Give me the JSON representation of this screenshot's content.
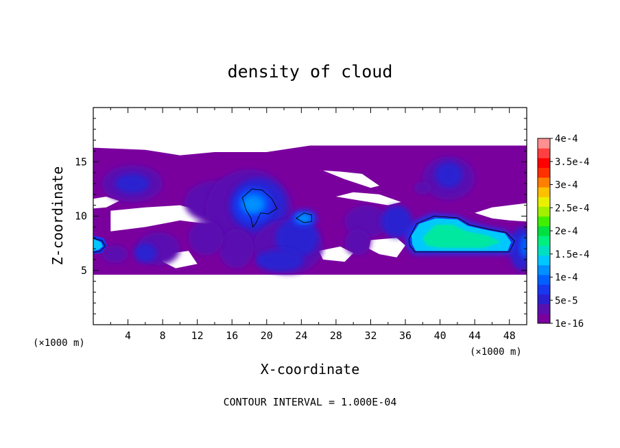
{
  "chart_data": {
    "type": "heatmap",
    "title": "density of cloud",
    "xlabel": "X-coordinate",
    "ylabel": "Z-coordinate",
    "x_unit": "(×1000 m)",
    "y_unit": "(×1000 m)",
    "xlim": [
      0,
      50
    ],
    "ylim": [
      0,
      20
    ],
    "x_ticks": [
      "4",
      "8",
      "12",
      "16",
      "20",
      "24",
      "28",
      "32",
      "36",
      "40",
      "44",
      "48"
    ],
    "y_ticks": [
      "5",
      "10",
      "15"
    ],
    "x_tick_values": [
      4,
      8,
      12,
      16,
      20,
      24,
      28,
      32,
      36,
      40,
      44,
      48
    ],
    "y_tick_values": [
      5,
      10,
      15
    ],
    "footnote": "CONTOUR INTERVAL = 1.000E-04",
    "colorbar": {
      "labels": [
        "4e-4",
        "3.5e-4",
        "3e-4",
        "2.5e-4",
        "2e-4",
        "1.5e-4",
        "1e-4",
        "5e-5",
        "1e-16"
      ],
      "levels": [
        1e-16,
        5e-05,
        0.0001,
        0.00015,
        0.0002,
        0.00025,
        0.0003,
        0.00035,
        0.0004
      ],
      "colors": [
        "#7a009e",
        "#5a10b0",
        "#2a20d0",
        "#1838f0",
        "#0060ff",
        "#0090ff",
        "#00c8ff",
        "#00e0c0",
        "#00f080",
        "#00e040",
        "#40f000",
        "#a0f000",
        "#e8f000",
        "#ffc000",
        "#ff8000",
        "#ff3000",
        "#ff0000",
        "#ff4040",
        "#ff9090"
      ]
    },
    "regions": [
      {
        "desc": "main cloud band",
        "x": [
          0,
          50
        ],
        "z": [
          4.5,
          16.5
        ],
        "value": 1e-16
      },
      {
        "desc": "upper-left blob",
        "x": [
          1,
          7
        ],
        "z": [
          11.5,
          14.5
        ],
        "value": 5e-05
      },
      {
        "desc": "central tower",
        "x": [
          11,
          28
        ],
        "z": [
          5,
          14.5
        ],
        "value": 5e-05
      },
      {
        "desc": "central core",
        "x": [
          17,
          21
        ],
        "z": [
          9,
          12
        ],
        "value": 0.0001
      },
      {
        "desc": "right core",
        "x": [
          36,
          48
        ],
        "z": [
          6,
          10
        ],
        "value": 0.00015
      },
      {
        "desc": "left edge core",
        "x": [
          0,
          1.5
        ],
        "z": [
          6.5,
          8
        ],
        "value": 0.00012
      },
      {
        "desc": "upper-right blob",
        "x": [
          38,
          44
        ],
        "z": [
          12,
          15.5
        ],
        "value": 5e-05
      }
    ]
  }
}
